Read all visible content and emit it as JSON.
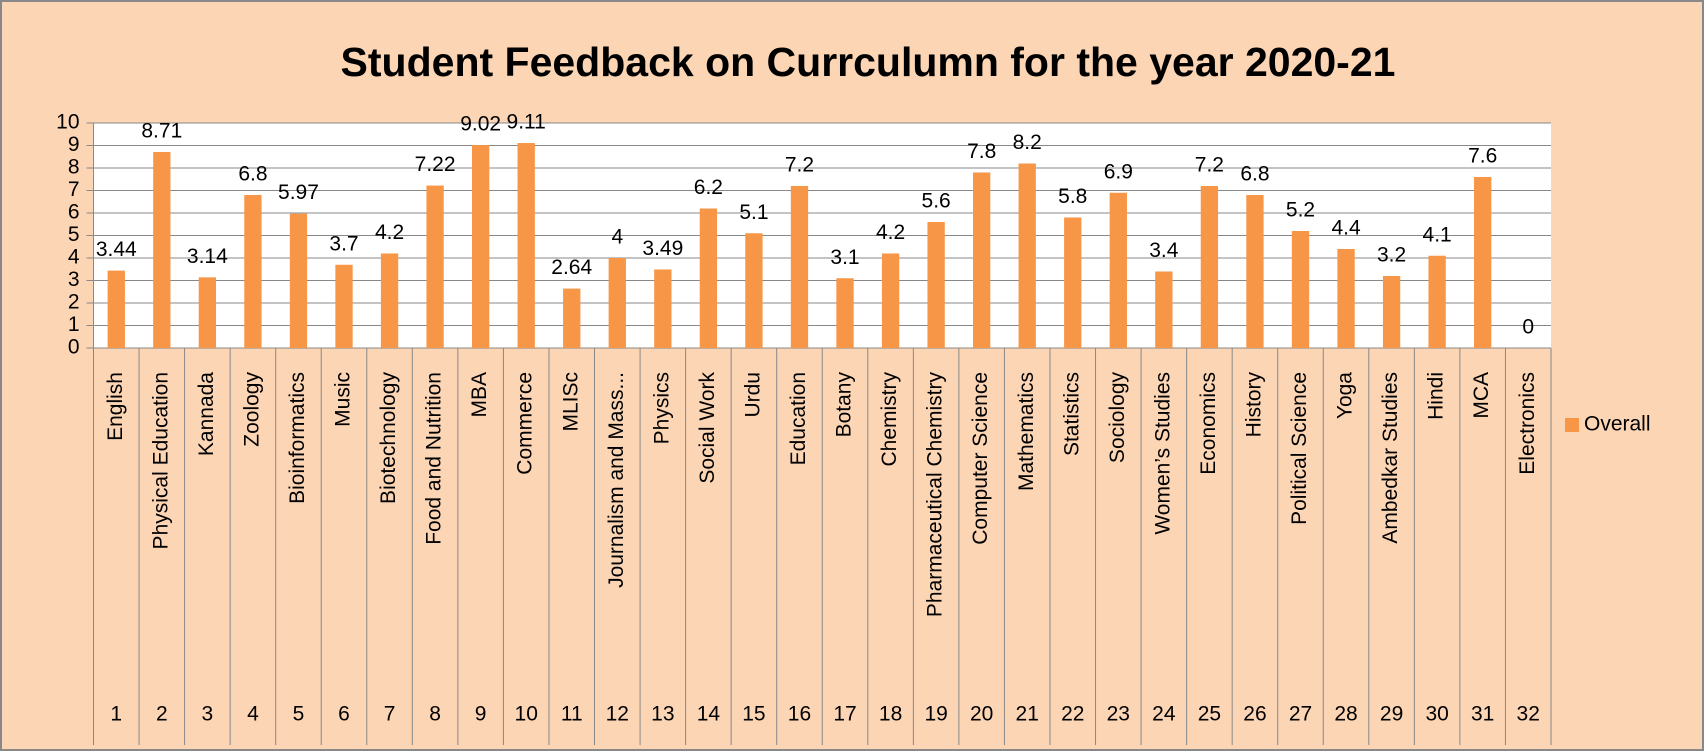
{
  "chart_data": {
    "type": "bar",
    "title": "Student Feedback on Currculumn for the year 2020-21",
    "categories": [
      "English",
      "Physical Education",
      "Kannada",
      "Zoology",
      "Bioinformatics",
      "Music",
      "Biotechnology",
      "Food and Nutrition",
      "MBA",
      "Commerce",
      "MLISc",
      "Journalism and Mass...",
      "Physics",
      "Social Work",
      "Urdu",
      "Education",
      "Botany",
      "Chemistry",
      "Pharmaceutical Chemistry",
      "Computer Science",
      "Mathematics",
      "Statistics",
      "Sociology",
      "Women’s Studies",
      "Economics",
      "History",
      "Political Science",
      "Yoga",
      "Ambedkar Studies",
      "Hindi",
      "MCA",
      "Electronics"
    ],
    "category_numbers": [
      1,
      2,
      3,
      4,
      5,
      6,
      7,
      8,
      9,
      10,
      11,
      12,
      13,
      14,
      15,
      16,
      17,
      18,
      19,
      20,
      21,
      22,
      23,
      24,
      25,
      26,
      27,
      28,
      29,
      30,
      31,
      32
    ],
    "series": [
      {
        "name": "Overall",
        "color": "#f79646",
        "values": [
          3.44,
          8.71,
          3.14,
          6.8,
          5.97,
          3.7,
          4.2,
          7.22,
          9.02,
          9.11,
          2.64,
          4,
          3.49,
          6.2,
          5.1,
          7.2,
          3.1,
          4.2,
          5.6,
          7.8,
          8.2,
          5.8,
          6.9,
          3.4,
          7.2,
          6.8,
          5.2,
          4.4,
          3.2,
          4.1,
          7.6,
          0
        ]
      }
    ],
    "ylim": [
      0,
      10
    ],
    "yticks": [
      0,
      1,
      2,
      3,
      4,
      5,
      6,
      7,
      8,
      9,
      10
    ],
    "grid": true,
    "legend": "right"
  }
}
